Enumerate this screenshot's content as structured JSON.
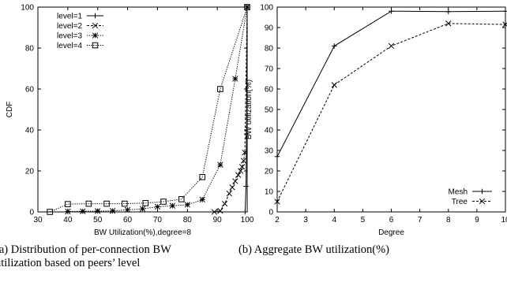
{
  "chart_data": [
    {
      "type": "line",
      "xlabel": "BW Utilization(%),degree=8",
      "ylabel": "CDF",
      "xlim": [
        30,
        100
      ],
      "ylim": [
        0,
        100
      ],
      "xticks": [
        "30",
        "40",
        "50",
        "60",
        "70",
        "80",
        "90",
        "100"
      ],
      "yticks": [
        "0",
        "20",
        "40",
        "60",
        "80",
        "100"
      ],
      "grid": false,
      "legend": "top-left",
      "series": [
        {
          "name": "level=1",
          "marker": "plus",
          "dash": "solid",
          "points": [
            [
              99.3,
              0
            ],
            [
              99.6,
              12.5
            ],
            [
              99.8,
              38
            ],
            [
              100,
              100
            ]
          ]
        },
        {
          "name": "level=2",
          "marker": "cross",
          "dash": "dashed",
          "points": [
            [
              89,
              0
            ],
            [
              91,
              0.5
            ],
            [
              92.5,
              4
            ],
            [
              94,
              9
            ],
            [
              95,
              12
            ],
            [
              96,
              15
            ],
            [
              97,
              18
            ],
            [
              97.8,
              20
            ],
            [
              98.3,
              22
            ],
            [
              98.8,
              25
            ],
            [
              99.2,
              29
            ],
            [
              100,
              100
            ]
          ]
        },
        {
          "name": "level=3",
          "marker": "star",
          "dash": "dotted",
          "points": [
            [
              40,
              0.2
            ],
            [
              45,
              0.3
            ],
            [
              50,
              0.4
            ],
            [
              55,
              0.5
            ],
            [
              60,
              1
            ],
            [
              65,
              1.5
            ],
            [
              70,
              2.5
            ],
            [
              75,
              3
            ],
            [
              80,
              3.5
            ],
            [
              85,
              6
            ],
            [
              91,
              23
            ],
            [
              96,
              65
            ],
            [
              100,
              100
            ]
          ]
        },
        {
          "name": "level=4",
          "marker": "square",
          "dash": "dotted",
          "points": [
            [
              34,
              0
            ],
            [
              40,
              3.8
            ],
            [
              47,
              4
            ],
            [
              53,
              4
            ],
            [
              59,
              4
            ],
            [
              66,
              4.3
            ],
            [
              72,
              5
            ],
            [
              78,
              6.2
            ],
            [
              85,
              17
            ],
            [
              91,
              60
            ],
            [
              100,
              100
            ]
          ]
        }
      ]
    },
    {
      "type": "line",
      "xlabel": "Degree",
      "ylabel": "BW utilization(%)",
      "xlim": [
        2,
        10
      ],
      "ylim": [
        0,
        100
      ],
      "xticks": [
        "2",
        "3",
        "4",
        "5",
        "6",
        "7",
        "8",
        "9",
        "10"
      ],
      "yticks": [
        "0",
        "10",
        "20",
        "30",
        "40",
        "50",
        "60",
        "70",
        "80",
        "90",
        "100"
      ],
      "grid": false,
      "legend": "bottom-right",
      "series": [
        {
          "name": "Mesh",
          "marker": "plus",
          "dash": "solid",
          "points": [
            [
              2,
              27
            ],
            [
              4,
              81
            ],
            [
              6,
              98
            ],
            [
              8,
              97.8
            ],
            [
              10,
              98
            ]
          ]
        },
        {
          "name": "Tree",
          "marker": "cross",
          "dash": "dashed",
          "points": [
            [
              2,
              5
            ],
            [
              4,
              62
            ],
            [
              6,
              81
            ],
            [
              8,
              92
            ],
            [
              10,
              91.5
            ]
          ]
        }
      ]
    }
  ],
  "captions": {
    "a_line1": "(a) Distribution of per-connection BW",
    "a_line2": "utilization based on peers’ level",
    "b_line1": "(b) Aggregate BW utilization(%)"
  }
}
